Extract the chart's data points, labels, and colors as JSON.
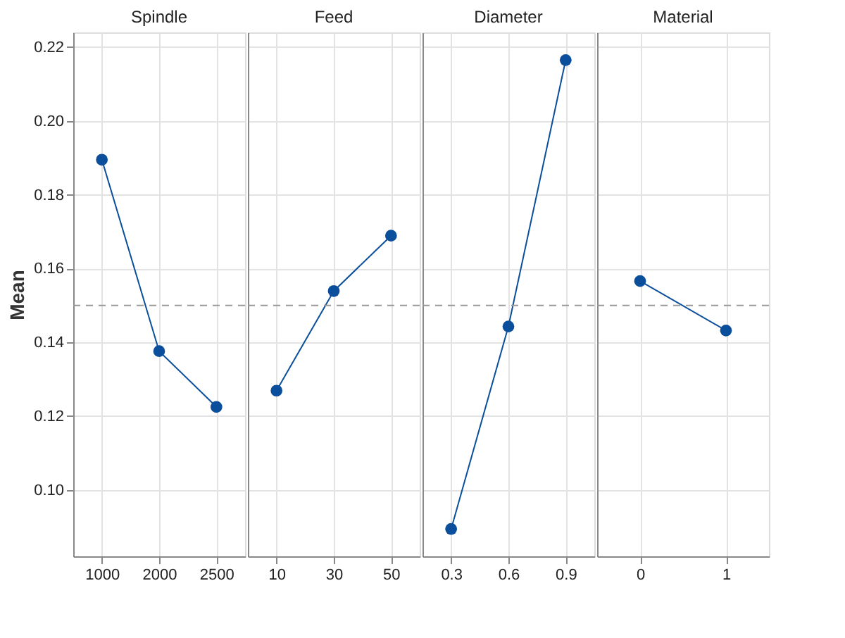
{
  "chart_data": [
    {
      "type": "line",
      "title": "Spindle",
      "ylabel": "Mean",
      "categories": [
        "1000",
        "2000",
        "2500"
      ],
      "series": [
        {
          "color": "#0b4f9c",
          "values": [
            0.1895,
            0.1376,
            0.1225
          ]
        }
      ],
      "ylim": [
        0.082,
        0.224
      ],
      "yticks": [
        {
          "value": 0.1,
          "label": "0.10"
        },
        0.12,
        0.14,
        0.16,
        0.18,
        {
          "value": 0.2,
          "label": "0.20"
        },
        0.22
      ],
      "ref_lines": [
        {
          "axis": "y",
          "value": 0.15,
          "color": "#999999",
          "line_style": "dashed"
        }
      ],
      "grid": true,
      "marker": "circle",
      "line_style": "solid"
    },
    {
      "type": "line",
      "title": "Feed",
      "categories": [
        "10",
        "30",
        "50"
      ],
      "series": [
        {
          "color": "#0b4f9c",
          "values": [
            0.1269,
            0.1539,
            0.1689
          ]
        }
      ],
      "ylim": [
        0.082,
        0.224
      ],
      "yticks": [
        0.1,
        0.12,
        0.14,
        0.16,
        0.18,
        0.2,
        0.22
      ],
      "ref_lines": [
        {
          "axis": "y",
          "value": 0.15,
          "color": "#999999",
          "line_style": "dashed"
        }
      ],
      "grid": true,
      "marker": "circle",
      "line_style": "solid",
      "tick_labels": "x"
    },
    {
      "type": "line",
      "title": "Diameter",
      "categories": [
        "0.3",
        "0.6",
        "0.9"
      ],
      "series": [
        {
          "color": "#0b4f9c",
          "values": [
            0.0894,
            0.1443,
            0.2165
          ]
        }
      ],
      "ylim": [
        0.082,
        0.224
      ],
      "yticks": [
        0.1,
        0.12,
        0.14,
        0.16,
        0.18,
        0.2,
        0.22
      ],
      "ref_lines": [
        {
          "axis": "y",
          "value": 0.15,
          "color": "#999999",
          "line_style": "dashed"
        }
      ],
      "grid": true,
      "marker": "circle",
      "line_style": "solid",
      "tick_labels": "x"
    },
    {
      "type": "line",
      "title": "Material",
      "categories": [
        "0",
        "1"
      ],
      "series": [
        {
          "color": "#0b4f9c",
          "values": [
            0.1566,
            0.1432
          ]
        }
      ],
      "ylim": [
        0.082,
        0.224
      ],
      "yticks": [
        0.1,
        0.12,
        0.14,
        0.16,
        0.18,
        0.2,
        0.22
      ],
      "ref_lines": [
        {
          "axis": "y",
          "value": 0.15,
          "color": "#999999",
          "line_style": "dashed"
        }
      ],
      "grid": true,
      "marker": "circle",
      "line_style": "solid",
      "tick_labels": "x"
    }
  ]
}
